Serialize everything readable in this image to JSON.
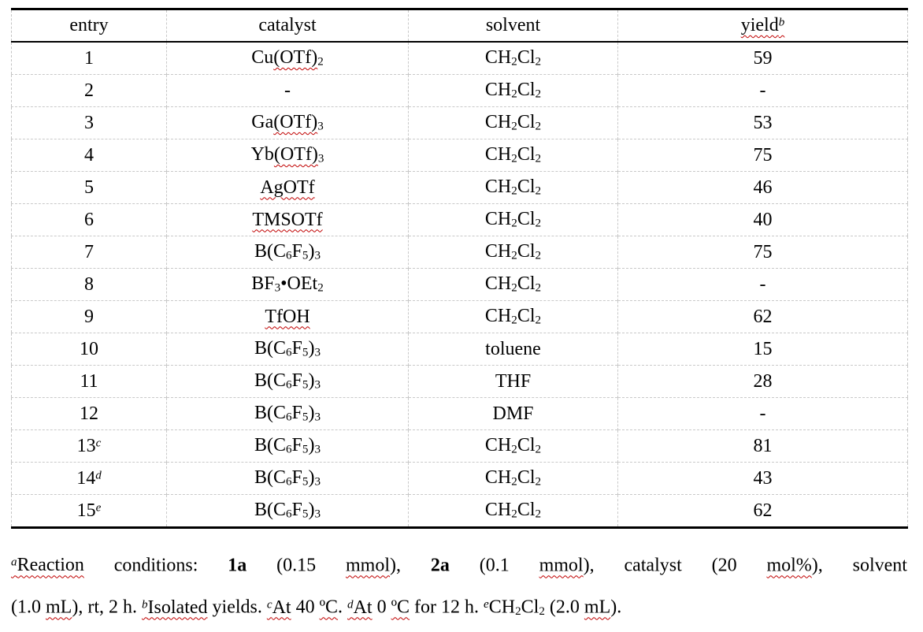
{
  "colors": {
    "background": "#ffffff",
    "text": "#000000",
    "rule_black": "#000000",
    "grid_gray": "#c9c9c9",
    "spellcheck_squiggle_red": "#c00000"
  },
  "table": {
    "column_keys": [
      "entry",
      "catalyst",
      "solvent",
      "yield"
    ],
    "headers": [
      [
        {
          "t": "entry"
        }
      ],
      [
        {
          "t": "catalyst"
        }
      ],
      [
        {
          "t": "solvent"
        }
      ],
      [
        {
          "t": "yield",
          "sq": true
        },
        {
          "t": "b",
          "sup": true,
          "sq": true
        }
      ]
    ],
    "rows": [
      {
        "cells": [
          [
            {
              "t": "1"
            }
          ],
          [
            {
              "t": "Cu"
            },
            {
              "t": "(OTf)",
              "sq": true
            },
            {
              "t": "2",
              "sub": true
            }
          ],
          [
            {
              "t": "CH"
            },
            {
              "t": "2",
              "sub": true
            },
            {
              "t": "Cl"
            },
            {
              "t": "2",
              "sub": true
            }
          ],
          [
            {
              "t": "59"
            }
          ]
        ]
      },
      {
        "cells": [
          [
            {
              "t": "2"
            }
          ],
          [
            {
              "t": "-"
            }
          ],
          [
            {
              "t": "CH"
            },
            {
              "t": "2",
              "sub": true
            },
            {
              "t": "Cl"
            },
            {
              "t": "2",
              "sub": true
            }
          ],
          [
            {
              "t": "-"
            }
          ]
        ]
      },
      {
        "cells": [
          [
            {
              "t": "3"
            }
          ],
          [
            {
              "t": "Ga"
            },
            {
              "t": "(OTf)",
              "sq": true
            },
            {
              "t": "3",
              "sub": true
            }
          ],
          [
            {
              "t": "CH"
            },
            {
              "t": "2",
              "sub": true
            },
            {
              "t": "Cl"
            },
            {
              "t": "2",
              "sub": true
            }
          ],
          [
            {
              "t": "53"
            }
          ]
        ]
      },
      {
        "cells": [
          [
            {
              "t": "4"
            }
          ],
          [
            {
              "t": "Yb"
            },
            {
              "t": "(OTf)",
              "sq": true
            },
            {
              "t": "3",
              "sub": true
            }
          ],
          [
            {
              "t": "CH"
            },
            {
              "t": "2",
              "sub": true
            },
            {
              "t": "Cl"
            },
            {
              "t": "2",
              "sub": true
            }
          ],
          [
            {
              "t": "75"
            }
          ]
        ]
      },
      {
        "cells": [
          [
            {
              "t": "5"
            }
          ],
          [
            {
              "t": "AgOTf",
              "sq": true
            }
          ],
          [
            {
              "t": "CH"
            },
            {
              "t": "2",
              "sub": true
            },
            {
              "t": "Cl"
            },
            {
              "t": "2",
              "sub": true
            }
          ],
          [
            {
              "t": "46"
            }
          ]
        ]
      },
      {
        "cells": [
          [
            {
              "t": "6"
            }
          ],
          [
            {
              "t": "TMSOTf",
              "sq": true
            }
          ],
          [
            {
              "t": "CH"
            },
            {
              "t": "2",
              "sub": true
            },
            {
              "t": "Cl"
            },
            {
              "t": "2",
              "sub": true
            }
          ],
          [
            {
              "t": "40"
            }
          ]
        ]
      },
      {
        "cells": [
          [
            {
              "t": "7"
            }
          ],
          [
            {
              "t": "B(C"
            },
            {
              "t": "6",
              "sub": true
            },
            {
              "t": "F"
            },
            {
              "t": "5",
              "sub": true
            },
            {
              "t": ")"
            },
            {
              "t": "3",
              "sub": true
            }
          ],
          [
            {
              "t": "CH"
            },
            {
              "t": "2",
              "sub": true
            },
            {
              "t": "Cl"
            },
            {
              "t": "2",
              "sub": true
            }
          ],
          [
            {
              "t": "75"
            }
          ]
        ]
      },
      {
        "cells": [
          [
            {
              "t": "8"
            }
          ],
          [
            {
              "t": "BF"
            },
            {
              "t": "3",
              "sub": true
            },
            {
              "t": "•OEt"
            },
            {
              "t": "2",
              "sub": true
            }
          ],
          [
            {
              "t": "CH"
            },
            {
              "t": "2",
              "sub": true
            },
            {
              "t": "Cl"
            },
            {
              "t": "2",
              "sub": true
            }
          ],
          [
            {
              "t": "-"
            }
          ]
        ]
      },
      {
        "cells": [
          [
            {
              "t": "9"
            }
          ],
          [
            {
              "t": "TfOH",
              "sq": true
            }
          ],
          [
            {
              "t": "CH"
            },
            {
              "t": "2",
              "sub": true
            },
            {
              "t": "Cl"
            },
            {
              "t": "2",
              "sub": true
            }
          ],
          [
            {
              "t": "62"
            }
          ]
        ]
      },
      {
        "cells": [
          [
            {
              "t": "10"
            }
          ],
          [
            {
              "t": "B(C"
            },
            {
              "t": "6",
              "sub": true
            },
            {
              "t": "F"
            },
            {
              "t": "5",
              "sub": true
            },
            {
              "t": ")"
            },
            {
              "t": "3",
              "sub": true
            }
          ],
          [
            {
              "t": "toluene"
            }
          ],
          [
            {
              "t": "15"
            }
          ]
        ]
      },
      {
        "cells": [
          [
            {
              "t": "11"
            }
          ],
          [
            {
              "t": "B(C"
            },
            {
              "t": "6",
              "sub": true
            },
            {
              "t": "F"
            },
            {
              "t": "5",
              "sub": true
            },
            {
              "t": ")"
            },
            {
              "t": "3",
              "sub": true
            }
          ],
          [
            {
              "t": "THF"
            }
          ],
          [
            {
              "t": "28"
            }
          ]
        ]
      },
      {
        "cells": [
          [
            {
              "t": "12"
            }
          ],
          [
            {
              "t": "B(C"
            },
            {
              "t": "6",
              "sub": true
            },
            {
              "t": "F"
            },
            {
              "t": "5",
              "sub": true
            },
            {
              "t": ")"
            },
            {
              "t": "3",
              "sub": true
            }
          ],
          [
            {
              "t": "DMF"
            }
          ],
          [
            {
              "t": "-"
            }
          ]
        ]
      },
      {
        "cells": [
          [
            {
              "t": "13"
            },
            {
              "t": "c",
              "sup": true
            }
          ],
          [
            {
              "t": "B(C"
            },
            {
              "t": "6",
              "sub": true
            },
            {
              "t": "F"
            },
            {
              "t": "5",
              "sub": true
            },
            {
              "t": ")"
            },
            {
              "t": "3",
              "sub": true
            }
          ],
          [
            {
              "t": "CH"
            },
            {
              "t": "2",
              "sub": true
            },
            {
              "t": "Cl"
            },
            {
              "t": "2",
              "sub": true
            }
          ],
          [
            {
              "t": "81"
            }
          ]
        ]
      },
      {
        "cells": [
          [
            {
              "t": "14"
            },
            {
              "t": "d",
              "sup": true
            }
          ],
          [
            {
              "t": "B(C"
            },
            {
              "t": "6",
              "sub": true
            },
            {
              "t": "F"
            },
            {
              "t": "5",
              "sub": true
            },
            {
              "t": ")"
            },
            {
              "t": "3",
              "sub": true
            }
          ],
          [
            {
              "t": "CH"
            },
            {
              "t": "2",
              "sub": true
            },
            {
              "t": "Cl"
            },
            {
              "t": "2",
              "sub": true
            }
          ],
          [
            {
              "t": "43"
            }
          ]
        ]
      },
      {
        "cells": [
          [
            {
              "t": "15"
            },
            {
              "t": "e",
              "sup": true
            }
          ],
          [
            {
              "t": "B(C"
            },
            {
              "t": "6",
              "sub": true
            },
            {
              "t": "F"
            },
            {
              "t": "5",
              "sub": true
            },
            {
              "t": ")"
            },
            {
              "t": "3",
              "sub": true
            }
          ],
          [
            {
              "t": "CH"
            },
            {
              "t": "2",
              "sub": true
            },
            {
              "t": "Cl"
            },
            {
              "t": "2",
              "sub": true
            }
          ],
          [
            {
              "t": "62"
            }
          ]
        ]
      }
    ]
  },
  "footnotes": {
    "lines": [
      [
        {
          "t": "a",
          "sup": true,
          "sq": true
        },
        {
          "t": "Reaction",
          "sq": true
        },
        {
          "t": " conditions: "
        },
        {
          "t": "1a",
          "b": true
        },
        {
          "t": " (0.15 "
        },
        {
          "t": "mmol",
          "sq": true
        },
        {
          "t": "), "
        },
        {
          "t": "2a",
          "b": true
        },
        {
          "t": " (0.1 "
        },
        {
          "t": "mmol",
          "sq": true
        },
        {
          "t": "), catalyst (20 "
        },
        {
          "t": "mol%",
          "sq": true
        },
        {
          "t": "), solvent"
        }
      ],
      [
        {
          "t": "(1.0 "
        },
        {
          "t": "mL",
          "sq": true
        },
        {
          "t": "), rt, 2 h. "
        },
        {
          "t": "b",
          "sup": true,
          "sq": true
        },
        {
          "t": "Isolated",
          "sq": true
        },
        {
          "t": " yields. "
        },
        {
          "t": "c",
          "sup": true,
          "sq": true
        },
        {
          "t": "At",
          "sq": true
        },
        {
          "t": " 40 "
        },
        {
          "t": "ºC",
          "sq": true
        },
        {
          "t": ". "
        },
        {
          "t": "d",
          "sup": true,
          "sq": true
        },
        {
          "t": "At",
          "sq": true
        },
        {
          "t": " 0 "
        },
        {
          "t": "ºC",
          "sq": true
        },
        {
          "t": " for 12 h. "
        },
        {
          "t": "e",
          "sup": true
        },
        {
          "t": "CH"
        },
        {
          "t": "2",
          "sub": true
        },
        {
          "t": "Cl"
        },
        {
          "t": "2",
          "sub": true
        },
        {
          "t": " (2.0 "
        },
        {
          "t": "mL",
          "sq": true
        },
        {
          "t": ")."
        }
      ]
    ]
  },
  "chart_data": {
    "type": "table",
    "title": "",
    "columns": [
      "entry",
      "catalyst",
      "solvent",
      "yield"
    ],
    "rows": [
      [
        "1",
        "Cu(OTf)2",
        "CH2Cl2",
        "59"
      ],
      [
        "2",
        "-",
        "CH2Cl2",
        "-"
      ],
      [
        "3",
        "Ga(OTf)3",
        "CH2Cl2",
        "53"
      ],
      [
        "4",
        "Yb(OTf)3",
        "CH2Cl2",
        "75"
      ],
      [
        "5",
        "AgOTf",
        "CH2Cl2",
        "46"
      ],
      [
        "6",
        "TMSOTf",
        "CH2Cl2",
        "40"
      ],
      [
        "7",
        "B(C6F5)3",
        "CH2Cl2",
        "75"
      ],
      [
        "8",
        "BF3•OEt2",
        "CH2Cl2",
        "-"
      ],
      [
        "9",
        "TfOH",
        "CH2Cl2",
        "62"
      ],
      [
        "10",
        "B(C6F5)3",
        "toluene",
        "15"
      ],
      [
        "11",
        "B(C6F5)3",
        "THF",
        "28"
      ],
      [
        "12",
        "B(C6F5)3",
        "DMF",
        "-"
      ],
      [
        "13c",
        "B(C6F5)3",
        "CH2Cl2",
        "81"
      ],
      [
        "14d",
        "B(C6F5)3",
        "CH2Cl2",
        "43"
      ],
      [
        "15e",
        "B(C6F5)3",
        "CH2Cl2",
        "62"
      ]
    ],
    "footnote_text": "aReaction conditions: 1a (0.15 mmol), 2a (0.1 mmol), catalyst (20 mol%), solvent (1.0 mL), rt, 2 h. bIsolated yields. cAt 40 ºC. dAt 0 ºC for 12 h. eCH2Cl2 (2.0 mL)."
  }
}
